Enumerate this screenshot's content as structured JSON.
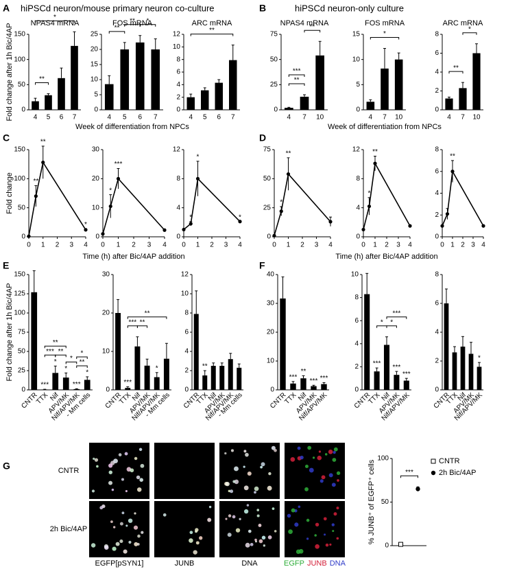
{
  "chart_data": [
    {
      "type": "bar",
      "panel": "A",
      "heading": "hiPSCd neuron/mouse primary neuron co-culture",
      "title": "NPAS4 mRNA",
      "ylabel": "Fold change after 1h Bic/4AP",
      "categories": [
        "4",
        "5",
        "6",
        "7"
      ],
      "values": [
        17,
        29,
        63,
        127
      ],
      "errors": [
        6,
        3,
        20,
        28
      ],
      "ylim": [
        0,
        150
      ],
      "yticks": [
        0,
        50,
        100,
        150
      ],
      "brackets": [
        {
          "from": "4",
          "to": "5",
          "label": "**"
        },
        {
          "from": "4",
          "to": "7",
          "label": "*"
        }
      ],
      "color": "#000000"
    },
    {
      "type": "bar",
      "title": "FOS mRNA",
      "xlabel": "Week of differentiation from NPCs",
      "categories": [
        "4",
        "5",
        "6",
        "7"
      ],
      "values": [
        8.5,
        20,
        22.3,
        20
      ],
      "errors": [
        2.8,
        2.3,
        2.3,
        3.5
      ],
      "ylim": [
        0,
        25
      ],
      "yticks": [
        0,
        5,
        10,
        15,
        20,
        25
      ],
      "brackets": [
        {
          "from": "4",
          "to": "5",
          "label": "**"
        },
        {
          "from": "5",
          "to": "6",
          "label": "**"
        },
        {
          "from": "6",
          "to": "7",
          "label": "*"
        }
      ],
      "color": "#000000"
    },
    {
      "type": "bar",
      "title": "ARC mRNA",
      "categories": [
        "4",
        "5",
        "6",
        "7"
      ],
      "values": [
        2,
        3.1,
        4.3,
        7.9
      ],
      "errors": [
        0.5,
        0.4,
        0.5,
        2.4
      ],
      "ylim": [
        0,
        12
      ],
      "yticks": [
        0,
        2,
        4,
        6,
        8,
        10,
        12
      ],
      "brackets": [
        {
          "from": "4",
          "to": "7",
          "label": "**"
        }
      ],
      "color": "#000000"
    },
    {
      "type": "bar",
      "panel": "B",
      "heading": "hiPSCd neuron-only culture",
      "title": "NPAS4 mRNA",
      "categories": [
        "4",
        "7",
        "10"
      ],
      "values": [
        2,
        13,
        54
      ],
      "errors": [
        0.5,
        2,
        14
      ],
      "ylim": [
        0,
        75
      ],
      "yticks": [
        0,
        25,
        50,
        75
      ],
      "brackets": [
        {
          "from": "4",
          "to": "7",
          "label": "**"
        },
        {
          "from": "4",
          "to": "7",
          "label": "***"
        },
        {
          "from": "7",
          "to": "10",
          "label": "**"
        }
      ],
      "color": "#000000"
    },
    {
      "type": "bar",
      "title": "FOS mRNA",
      "xlabel": "Week of differentiation from NPCs",
      "categories": [
        "4",
        "7",
        "10"
      ],
      "values": [
        1.6,
        8.2,
        10
      ],
      "errors": [
        0.4,
        4,
        1.3
      ],
      "ylim": [
        0,
        15
      ],
      "yticks": [
        0,
        5,
        10,
        15
      ],
      "brackets": [
        {
          "from": "4",
          "to": "10",
          "label": "*"
        }
      ],
      "color": "#000000"
    },
    {
      "type": "bar",
      "title": "ARC mRNA",
      "categories": [
        "4",
        "7",
        "10"
      ],
      "values": [
        1.2,
        2.3,
        6
      ],
      "errors": [
        0.15,
        0.6,
        1
      ],
      "ylim": [
        0,
        8
      ],
      "yticks": [
        0,
        2,
        4,
        6,
        8
      ],
      "brackets": [
        {
          "from": "4",
          "to": "7",
          "label": "**"
        },
        {
          "from": "7",
          "to": "10",
          "label": "*"
        }
      ],
      "color": "#000000"
    },
    {
      "type": "line",
      "panel": "C",
      "ylabel": "Fold change",
      "x": [
        0,
        0.5,
        1,
        4
      ],
      "values": [
        1,
        70,
        128,
        12
      ],
      "errors": [
        null,
        18,
        28,
        2
      ],
      "significance": [
        null,
        "**",
        "**",
        "*"
      ],
      "xlim": [
        0,
        4
      ],
      "xticks": [
        0,
        1,
        2,
        3,
        4
      ],
      "ylim": [
        0,
        150
      ],
      "yticks": [
        0,
        50,
        100,
        150
      ],
      "color": "#000000"
    },
    {
      "type": "line",
      "xlabel": "Time (h) after Bic/4AP addition",
      "x": [
        0,
        0.5,
        1,
        4
      ],
      "values": [
        1,
        10.5,
        20,
        2.3
      ],
      "errors": [
        null,
        4,
        3.5,
        null
      ],
      "significance": [
        null,
        "*",
        "***",
        null
      ],
      "xlim": [
        0,
        4
      ],
      "xticks": [
        0,
        1,
        2,
        3,
        4
      ],
      "ylim": [
        0,
        30
      ],
      "yticks": [
        0,
        10,
        20,
        30
      ],
      "color": "#000000"
    },
    {
      "type": "line",
      "x": [
        0,
        0.5,
        1,
        4
      ],
      "values": [
        1,
        1.8,
        8,
        2.1
      ],
      "errors": [
        null,
        0.3,
        2.4,
        null
      ],
      "significance": [
        null,
        "*",
        "*",
        "*"
      ],
      "xlim": [
        0,
        4
      ],
      "xticks": [
        0,
        1,
        2,
        3,
        4
      ],
      "ylim": [
        0,
        12
      ],
      "yticks": [
        0,
        4,
        8,
        12
      ],
      "color": "#000000"
    },
    {
      "type": "line",
      "panel": "D",
      "x": [
        0,
        0.5,
        1,
        4
      ],
      "values": [
        1,
        22,
        54,
        13
      ],
      "errors": [
        null,
        4,
        14,
        4
      ],
      "significance": [
        null,
        "*",
        "**",
        null
      ],
      "xlim": [
        0,
        4
      ],
      "xticks": [
        0,
        1,
        2,
        3,
        4
      ],
      "ylim": [
        0,
        75
      ],
      "yticks": [
        0,
        25,
        50,
        75
      ],
      "color": "#000000"
    },
    {
      "type": "line",
      "xlabel": "Time (h) after Bic/4AP addition",
      "x": [
        0,
        0.5,
        1,
        4
      ],
      "values": [
        1,
        4.2,
        10.1,
        1.5
      ],
      "errors": [
        null,
        1.2,
        1,
        null
      ],
      "significance": [
        null,
        "*",
        "**",
        null
      ],
      "xlim": [
        0,
        4
      ],
      "xticks": [
        0,
        1,
        2,
        3,
        4
      ],
      "ylim": [
        0,
        12
      ],
      "yticks": [
        0,
        4,
        8,
        12
      ],
      "color": "#000000"
    },
    {
      "type": "line",
      "x": [
        0,
        0.5,
        1,
        4
      ],
      "values": [
        1,
        2.1,
        6,
        1
      ],
      "errors": [
        null,
        0.5,
        1,
        null
      ],
      "significance": [
        null,
        null,
        "**",
        null
      ],
      "xlim": [
        0,
        4
      ],
      "xticks": [
        0,
        1,
        2,
        3,
        4
      ],
      "ylim": [
        0,
        8
      ],
      "yticks": [
        0,
        2,
        4,
        6,
        8
      ],
      "color": "#000000"
    },
    {
      "type": "bar",
      "panel": "E",
      "ylabel": "Fold change after 1h Bic/4AP",
      "categories": [
        "CNTR",
        "TTX",
        "Nif",
        "APV/MK",
        "Nif/APV/MK",
        "- Mm cells"
      ],
      "values": [
        127,
        0.5,
        22,
        16,
        1,
        13
      ],
      "errors": [
        28,
        0.3,
        9,
        6,
        0.5,
        4
      ],
      "significance": [
        null,
        "***",
        "*",
        "*",
        "***",
        "*"
      ],
      "ylim": [
        0,
        150
      ],
      "yticks": [
        0,
        25,
        50,
        75,
        100,
        125,
        150
      ],
      "brackets": [
        {
          "from": "TTX",
          "to": "Nif",
          "label": "***"
        },
        {
          "from": "Nif",
          "to": "APV/MK",
          "label": "**"
        },
        {
          "from": "Nif/APV/MK",
          "to": "- Mm cells",
          "label": "**"
        },
        {
          "from": "TTX",
          "to": "APV/MK",
          "label": "**"
        },
        {
          "from": "APV/MK",
          "to": "Nif/APV/MK",
          "label": "*"
        },
        {
          "from": "Nif/APV/MK",
          "to": "- Mm cells",
          "label": "*"
        }
      ],
      "color": "#000000"
    },
    {
      "type": "bar",
      "categories": [
        "CNTR",
        "TTX",
        "Nif",
        "APV/MK",
        "Nif/APV/MK",
        "- Mm cells"
      ],
      "values": [
        20,
        0.5,
        11.3,
        6.3,
        3.3,
        8.1
      ],
      "errors": [
        3.5,
        0.3,
        2.5,
        1.7,
        1.2,
        4
      ],
      "significance": [
        null,
        "***",
        null,
        null,
        "*",
        null
      ],
      "ylim": [
        0,
        30
      ],
      "yticks": [
        0,
        10,
        20,
        30
      ],
      "brackets": [
        {
          "from": "TTX",
          "to": "Nif",
          "label": "***"
        },
        {
          "from": "Nif",
          "to": "APV/MK",
          "label": "**"
        },
        {
          "from": "TTX",
          "to": "- Mm cells",
          "label": "**"
        }
      ],
      "color": "#000000"
    },
    {
      "type": "bar",
      "categories": [
        "CNTR",
        "TTX",
        "Nif",
        "APV/MK",
        "Nif/APV/MK",
        "- Mm cells"
      ],
      "values": [
        7.9,
        1.5,
        2.5,
        2.5,
        3.2,
        2.3
      ],
      "errors": [
        2.4,
        0.5,
        0.3,
        0.3,
        0.6,
        0.4
      ],
      "significance": [
        null,
        "**",
        null,
        null,
        null,
        null
      ],
      "ylim": [
        0,
        12
      ],
      "yticks": [
        0,
        2,
        4,
        6,
        8,
        10,
        12
      ],
      "color": "#000000"
    },
    {
      "type": "bar",
      "panel": "F",
      "categories": [
        "CNTR",
        "TTX",
        "Nif",
        "APV/MK",
        "Nif/APV/MK"
      ],
      "values": [
        31.7,
        2.2,
        4,
        1.3,
        2
      ],
      "errors": [
        7.5,
        0.7,
        0.9,
        0.3,
        0.5
      ],
      "significance": [
        null,
        "***",
        "**",
        "***",
        "***"
      ],
      "ylim": [
        0,
        40
      ],
      "yticks": [
        0,
        10,
        20,
        30,
        40
      ],
      "color": "#000000"
    },
    {
      "type": "bar",
      "categories": [
        "CNTR",
        "TTX",
        "Nif",
        "APV/MK",
        "Nif/APV/MK"
      ],
      "values": [
        8.3,
        1.6,
        3.9,
        1.3,
        0.8
      ],
      "errors": [
        1.8,
        0.3,
        0.7,
        0.3,
        0.2
      ],
      "significance": [
        null,
        "***",
        null,
        "***",
        "***"
      ],
      "ylim": [
        0,
        10
      ],
      "yticks": [
        0,
        2,
        4,
        6,
        8,
        10
      ],
      "brackets": [
        {
          "from": "TTX",
          "to": "Nif",
          "label": "*"
        },
        {
          "from": "Nif",
          "to": "APV/MK",
          "label": "*"
        },
        {
          "from": "Nif",
          "to": "Nif/APV/MK",
          "label": "***"
        }
      ],
      "color": "#000000"
    },
    {
      "type": "bar",
      "categories": [
        "CNTR",
        "TTX",
        "Nif",
        "APV/MK",
        "Nif/APV/MK"
      ],
      "values": [
        6,
        2.6,
        3,
        2.5,
        1.6
      ],
      "errors": [
        1,
        0.4,
        0.7,
        0.8,
        0.3
      ],
      "significance": [
        null,
        null,
        null,
        null,
        "*"
      ],
      "ylim": [
        0,
        8
      ],
      "yticks": [
        0,
        2,
        4,
        6,
        8
      ],
      "color": "#000000"
    },
    {
      "type": "dot",
      "ylabel": "% JUNB⁺ of EGFP⁺ cells",
      "categories": [
        "CNTR",
        "2h Bic/4AP"
      ],
      "values": [
        1.5,
        65
      ],
      "errors": [
        null,
        2.5
      ],
      "markers": [
        "square-open",
        "circle"
      ],
      "legend": true,
      "ylim": [
        0,
        100
      ],
      "yticks": [
        0,
        50,
        100
      ],
      "brackets": [
        {
          "from": "CNTR",
          "to": "2h Bic/4AP",
          "label": "***"
        }
      ],
      "color": "#000000"
    }
  ],
  "images": {
    "panel": "G",
    "rows": [
      "CNTR",
      "2h Bic/4AP"
    ],
    "columns": [
      "EGFP[pSYN1]",
      "JUNB",
      "DNA"
    ],
    "merge": {
      "labels": [
        "EGFP",
        "JUNB",
        "DNA"
      ],
      "colors": [
        "#2fae3a",
        "#d4203a",
        "#2f3bc8"
      ]
    }
  }
}
